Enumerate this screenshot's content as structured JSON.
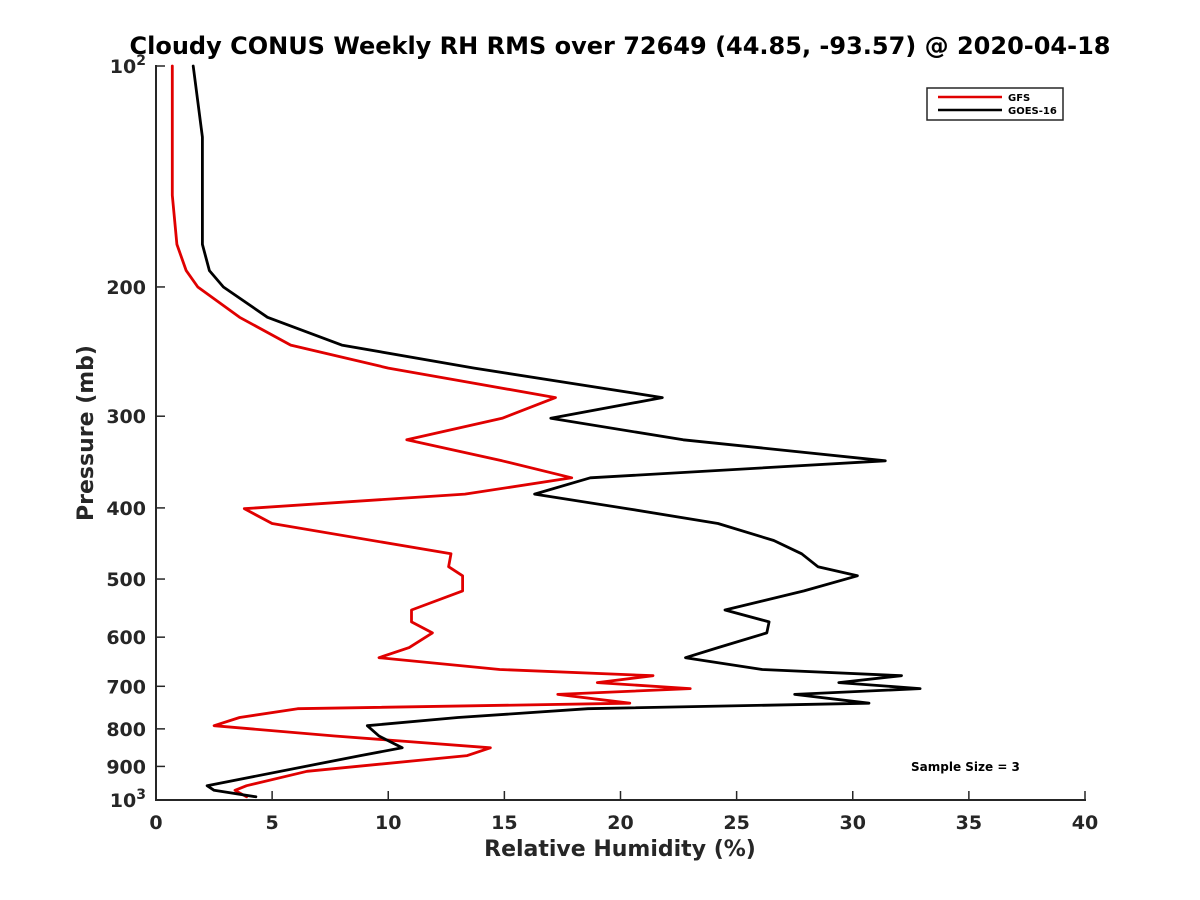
{
  "chart_data": {
    "type": "line",
    "title": "Cloudy CONUS Weekly RH RMS over 72649 (44.85, -93.57) @ 2020-04-18",
    "xlabel": "Relative Humidity (%)",
    "ylabel": "Pressure (mb)",
    "xlim": [
      0,
      40
    ],
    "ylim": [
      100,
      1000
    ],
    "yscale": "log",
    "y_reversed": true,
    "x_ticks": [
      0,
      5,
      10,
      15,
      20,
      25,
      30,
      35,
      40
    ],
    "x_tick_labels": [
      "0",
      "5",
      "10",
      "15",
      "20",
      "25",
      "30",
      "35",
      "40"
    ],
    "y_ticks": [
      200,
      300,
      400,
      500,
      600,
      700,
      800,
      900
    ],
    "y_tick_labels": [
      "200",
      "300",
      "400",
      "500",
      "600",
      "700",
      "800",
      "900"
    ],
    "y_end_labels": [
      {
        "value": 100,
        "base": "10",
        "exp": "2"
      },
      {
        "value": 1000,
        "base": "10",
        "exp": "3"
      }
    ],
    "grid": false,
    "legend_position": "top-right",
    "annotation": "Sample Size = 3",
    "series": [
      {
        "name": "GFS",
        "color": "#e00000",
        "points": [
          [
            0.7,
            100
          ],
          [
            0.7,
            125
          ],
          [
            0.7,
            150
          ],
          [
            0.9,
            175
          ],
          [
            1.3,
            190
          ],
          [
            1.8,
            200
          ],
          [
            3.6,
            220
          ],
          [
            5.8,
            240
          ],
          [
            10.0,
            258
          ],
          [
            17.2,
            283
          ],
          [
            14.9,
            302
          ],
          [
            10.8,
            323
          ],
          [
            14.9,
            345
          ],
          [
            17.9,
            364
          ],
          [
            13.3,
            383
          ],
          [
            3.8,
            401
          ],
          [
            5.0,
            420
          ],
          [
            12.7,
            462
          ],
          [
            12.6,
            481
          ],
          [
            13.2,
            495
          ],
          [
            13.2,
            519
          ],
          [
            11.0,
            551
          ],
          [
            11.0,
            572
          ],
          [
            11.9,
            592
          ],
          [
            10.9,
            620
          ],
          [
            9.6,
            640
          ],
          [
            14.8,
            664
          ],
          [
            21.4,
            677
          ],
          [
            19.0,
            692
          ],
          [
            23.0,
            705
          ],
          [
            17.3,
            718
          ],
          [
            20.4,
            738
          ],
          [
            6.1,
            751
          ],
          [
            3.6,
            772
          ],
          [
            2.5,
            792
          ],
          [
            7.7,
            818
          ],
          [
            14.4,
            849
          ],
          [
            13.4,
            870
          ],
          [
            6.5,
            914
          ],
          [
            3.9,
            956
          ],
          [
            3.4,
            970
          ],
          [
            3.9,
            990
          ]
        ]
      },
      {
        "name": "GOES-16",
        "color": "#000000",
        "points": [
          [
            1.6,
            100
          ],
          [
            2.0,
            125
          ],
          [
            2.0,
            150
          ],
          [
            2.0,
            175
          ],
          [
            2.3,
            190
          ],
          [
            2.9,
            200
          ],
          [
            4.8,
            220
          ],
          [
            8.0,
            240
          ],
          [
            13.7,
            258
          ],
          [
            21.8,
            283
          ],
          [
            17.0,
            302
          ],
          [
            22.7,
            323
          ],
          [
            31.4,
            345
          ],
          [
            18.7,
            364
          ],
          [
            16.3,
            383
          ],
          [
            20.3,
            401
          ],
          [
            24.2,
            420
          ],
          [
            26.6,
            443
          ],
          [
            27.8,
            462
          ],
          [
            28.5,
            481
          ],
          [
            30.2,
            495
          ],
          [
            27.9,
            519
          ],
          [
            24.5,
            551
          ],
          [
            26.4,
            572
          ],
          [
            26.3,
            592
          ],
          [
            24.2,
            620
          ],
          [
            22.8,
            640
          ],
          [
            26.1,
            664
          ],
          [
            32.1,
            677
          ],
          [
            29.4,
            692
          ],
          [
            32.9,
            705
          ],
          [
            27.5,
            718
          ],
          [
            30.7,
            738
          ],
          [
            18.6,
            751
          ],
          [
            13.0,
            772
          ],
          [
            9.1,
            792
          ],
          [
            9.6,
            818
          ],
          [
            10.6,
            849
          ],
          [
            8.8,
            870
          ],
          [
            2.2,
            956
          ],
          [
            2.5,
            970
          ],
          [
            4.3,
            990
          ]
        ]
      }
    ]
  }
}
